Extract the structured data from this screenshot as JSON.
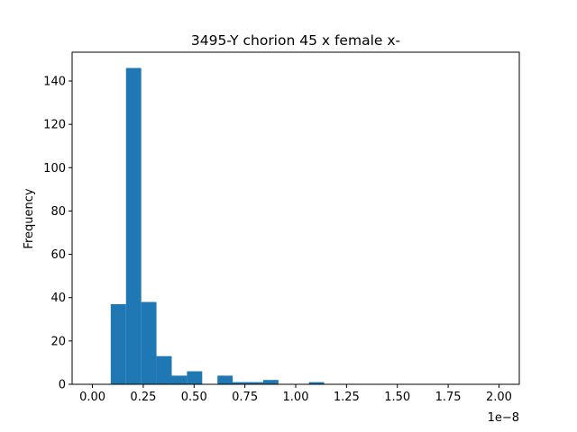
{
  "chart_data": {
    "type": "bar",
    "title": "3495-Y chorion 45 x female x-",
    "xlabel": "",
    "ylabel": "Frequency",
    "x_offset_label": "1e−8",
    "x_scale": 1e-08,
    "xlim": [
      -0.1,
      2.1
    ],
    "ylim": [
      0,
      153.3
    ],
    "bin_width": 0.075,
    "bins": [
      {
        "x0": 0.09,
        "count": 37
      },
      {
        "x0": 0.165,
        "count": 146
      },
      {
        "x0": 0.24,
        "count": 38
      },
      {
        "x0": 0.315,
        "count": 13
      },
      {
        "x0": 0.39,
        "count": 4
      },
      {
        "x0": 0.465,
        "count": 6
      },
      {
        "x0": 0.54,
        "count": 0
      },
      {
        "x0": 0.615,
        "count": 4
      },
      {
        "x0": 0.69,
        "count": 1
      },
      {
        "x0": 0.765,
        "count": 1
      },
      {
        "x0": 0.84,
        "count": 2
      },
      {
        "x0": 0.915,
        "count": 0
      },
      {
        "x0": 0.99,
        "count": 0
      },
      {
        "x0": 1.065,
        "count": 1
      },
      {
        "x0": 1.14,
        "count": 0
      }
    ],
    "x_ticks": [
      "0.00",
      "0.25",
      "0.50",
      "0.75",
      "1.00",
      "1.25",
      "1.50",
      "1.75",
      "2.00"
    ],
    "y_ticks": [
      "0",
      "20",
      "40",
      "60",
      "80",
      "100",
      "120",
      "140"
    ],
    "grid": false,
    "colors": {
      "bar": "#1f77b4",
      "axes": "#000000"
    }
  }
}
